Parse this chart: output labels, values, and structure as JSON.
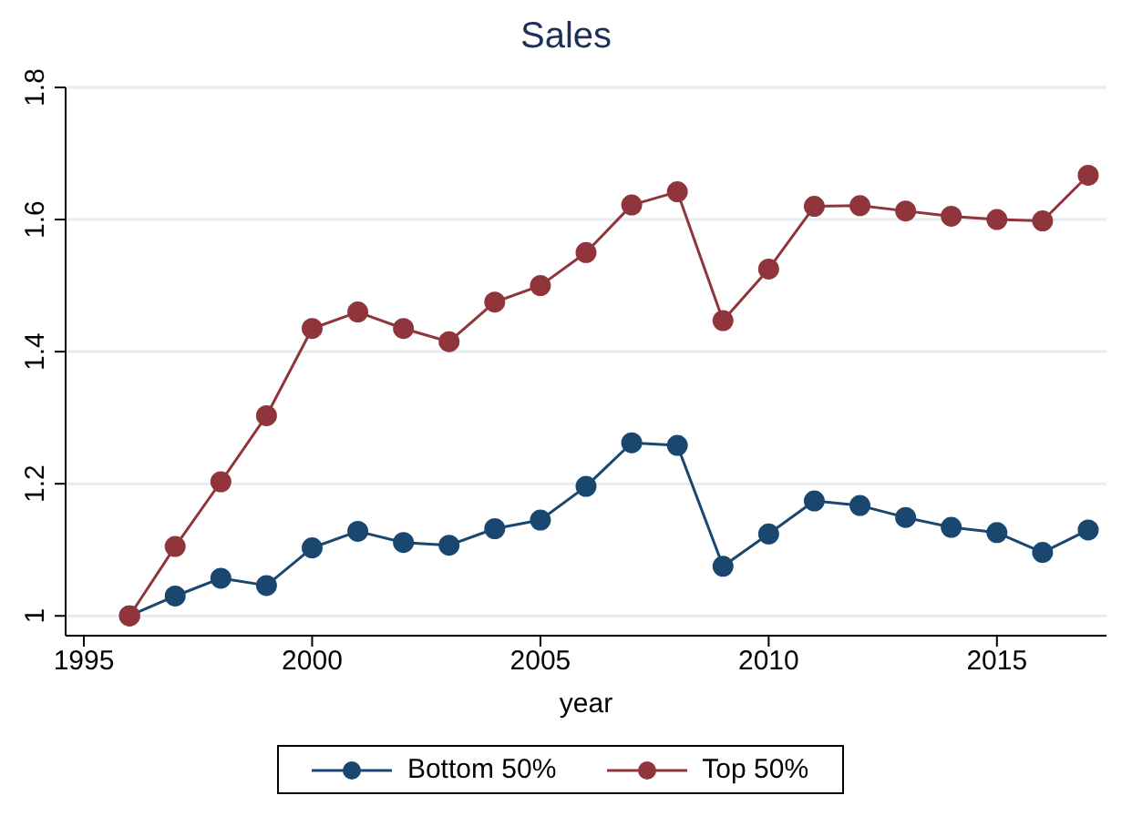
{
  "chart_data": {
    "type": "line",
    "title": "Sales",
    "xlabel": "year",
    "x": [
      1996,
      1997,
      1998,
      1999,
      2000,
      2001,
      2002,
      2003,
      2004,
      2005,
      2006,
      2007,
      2008,
      2009,
      2010,
      2011,
      2012,
      2013,
      2014,
      2015,
      2016,
      2017
    ],
    "series": [
      {
        "name": "Bottom 50%",
        "color": "#1a476f",
        "values": [
          1.0,
          1.03,
          1.057,
          1.046,
          1.103,
          1.128,
          1.111,
          1.107,
          1.132,
          1.145,
          1.196,
          1.262,
          1.258,
          1.075,
          1.124,
          1.174,
          1.167,
          1.149,
          1.134,
          1.126,
          1.096,
          1.13
        ]
      },
      {
        "name": "Top 50%",
        "color": "#90353b",
        "values": [
          1.0,
          1.105,
          1.203,
          1.303,
          1.435,
          1.46,
          1.435,
          1.415,
          1.475,
          1.5,
          1.55,
          1.622,
          1.642,
          1.447,
          1.525,
          1.62,
          1.621,
          1.613,
          1.605,
          1.6,
          1.598,
          1.667
        ]
      }
    ],
    "xlim": [
      1994.6,
      2017.4
    ],
    "xticks": [
      1995,
      2000,
      2005,
      2010,
      2015
    ],
    "ylim": [
      0.97,
      1.8
    ],
    "yticks": [
      1,
      1.2,
      1.4,
      1.6,
      1.8
    ],
    "grid": "y",
    "legend": "bottom",
    "marker": "circle",
    "line_style": "solid"
  }
}
